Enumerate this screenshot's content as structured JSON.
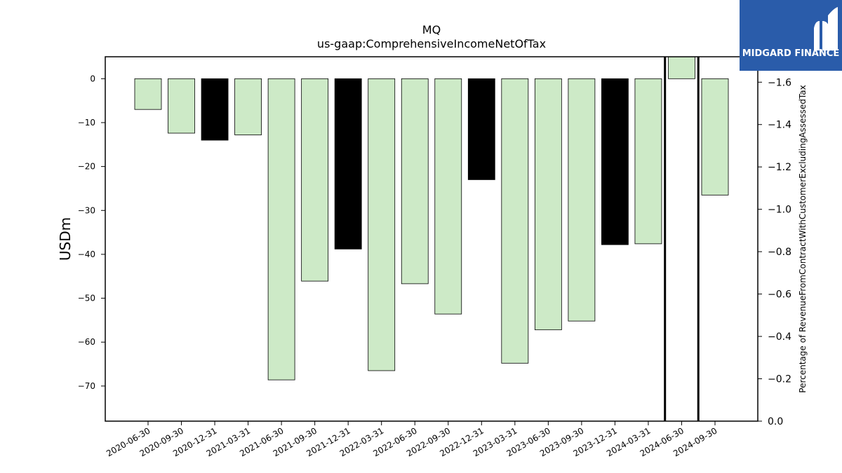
{
  "logo": {
    "text": "MIDGARD FINANCE"
  },
  "chart_data": {
    "type": "bar",
    "title": "MQ",
    "subtitle": "us-gaap:ComprehensiveIncomeNetOfTax",
    "ylabel": "USDm",
    "y2label": "Percentage of RevenueFromContractWithCustomerExcludingAssessedTax",
    "categories": [
      "2020-06-30",
      "2020-09-30",
      "2020-12-31",
      "2021-03-31",
      "2021-06-30",
      "2021-09-30",
      "2021-12-31",
      "2022-03-31",
      "2022-06-30",
      "2022-09-30",
      "2022-12-31",
      "2023-03-31",
      "2023-06-30",
      "2023-09-30",
      "2023-12-31",
      "2024-03-31",
      "2024-06-30",
      "2024-09-30"
    ],
    "values": [
      -7.0,
      -12.4,
      -14.0,
      -12.8,
      -68.6,
      -46.1,
      -38.8,
      -66.5,
      -46.7,
      -53.6,
      -23.0,
      -64.8,
      -57.2,
      -55.2,
      -37.8,
      -37.6,
      5.0,
      -26.5
    ],
    "highlight": [
      false,
      false,
      true,
      false,
      false,
      false,
      true,
      false,
      false,
      false,
      true,
      false,
      false,
      false,
      true,
      false,
      false,
      false
    ],
    "colors": {
      "normal": "#cdeac7",
      "highlight": "#000000",
      "edge": "#000000"
    },
    "ylim": [
      -78,
      5
    ],
    "yticks": [
      0,
      -10,
      -20,
      -30,
      -40,
      -50,
      -60,
      -70
    ],
    "y2lim": [
      0.0,
      1.72
    ],
    "y2ticks": [
      -1.6,
      -1.4,
      -1.2,
      -1.0,
      -0.8,
      -0.6,
      -0.4,
      -0.2,
      0.0
    ],
    "vlines_after": [
      "2024-03-31",
      "2024-06-30"
    ],
    "grid": false
  }
}
